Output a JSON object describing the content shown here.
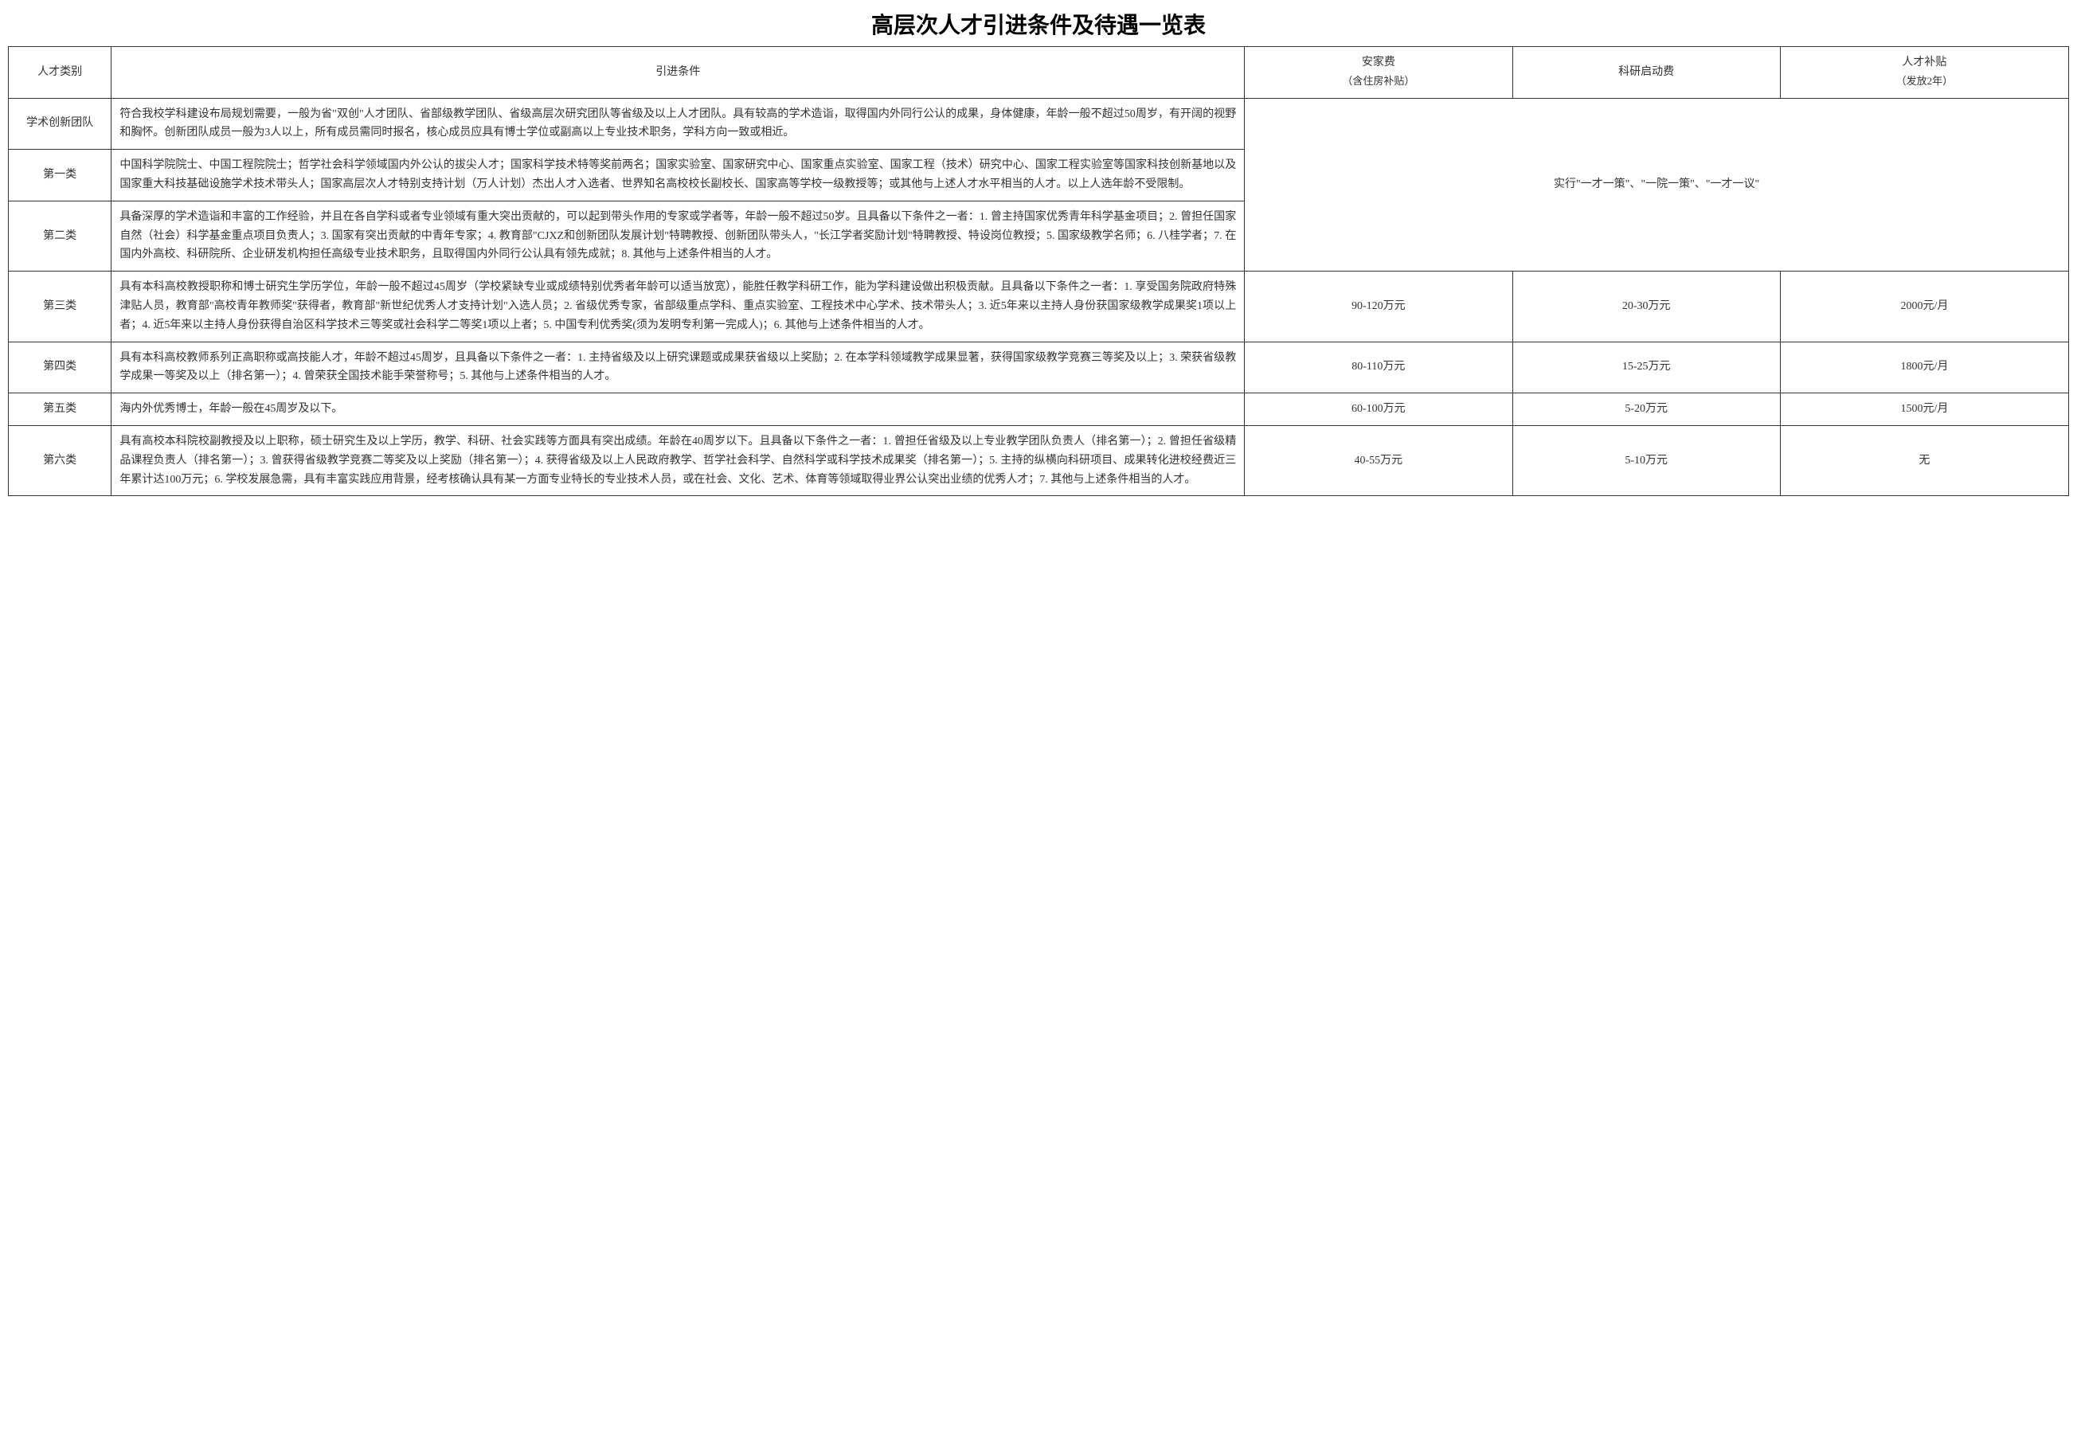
{
  "title": "高层次人才引进条件及待遇一览表",
  "headers": {
    "category": "人才类别",
    "conditions": "引进条件",
    "settle_fee": "安家费",
    "settle_fee_sub": "（含住房补贴）",
    "research_fee": "科研启动费",
    "subsidy": "人才补贴",
    "subsidy_sub": "（发放2年）"
  },
  "merged_policy": "实行\"一才一策\"、\"一院一策\"、\"一才一议\"",
  "rows": [
    {
      "category": "学术创新团队",
      "conditions": "符合我校学科建设布局规划需要，一般为省\"双创\"人才团队、省部级教学团队、省级高层次研究团队等省级及以上人才团队。具有较高的学术造诣，取得国内外同行公认的成果，身体健康，年龄一般不超过50周岁，有开阔的视野和胸怀。创新团队成员一般为3人以上，所有成员需同时报名，核心成员应具有博士学位或副高以上专业技术职务，学科方向一致或相近。"
    },
    {
      "category": "第一类",
      "conditions": "中国科学院院士、中国工程院院士；哲学社会科学领域国内外公认的拔尖人才；国家科学技术特等奖前两名；国家实验室、国家研究中心、国家重点实验室、国家工程（技术）研究中心、国家工程实验室等国家科技创新基地以及国家重大科技基础设施学术技术带头人；国家高层次人才特别支持计划（万人计划）杰出人才入选者、世界知名高校校长副校长、国家高等学校一级教授等；或其他与上述人才水平相当的人才。以上人选年龄不受限制。"
    },
    {
      "category": "第二类",
      "conditions": "具备深厚的学术造诣和丰富的工作经验，并且在各自学科或者专业领域有重大突出贡献的，可以起到带头作用的专家或学者等，年龄一般不超过50岁。且具备以下条件之一者：1. 曾主持国家优秀青年科学基金项目；2. 曾担任国家自然（社会）科学基金重点项目负责人；3. 国家有突出贡献的中青年专家；4. 教育部\"CJXZ和创新团队发展计划\"特聘教授、创新团队带头人，\"长江学者奖励计划\"特聘教授、特设岗位教授；5. 国家级教学名师；6. 八桂学者；7. 在国内外高校、科研院所、企业研发机构担任高级专业技术职务，且取得国内外同行公认具有领先成就；8. 其他与上述条件相当的人才。"
    },
    {
      "category": "第三类",
      "conditions": "具有本科高校教授职称和博士研究生学历学位，年龄一般不超过45周岁（学校紧缺专业或成绩特别优秀者年龄可以适当放宽），能胜任教学科研工作，能为学科建设做出积极贡献。且具备以下条件之一者：1. 享受国务院政府特殊津贴人员，教育部\"高校青年教师奖\"获得者，教育部\"新世纪优秀人才支持计划\"入选人员；2. 省级优秀专家，省部级重点学科、重点实验室、工程技术中心学术、技术带头人；3. 近5年来以主持人身份获国家级教学成果奖1项以上者；4. 近5年来以主持人身份获得自治区科学技术三等奖或社会科学二等奖1项以上者；5. 中国专利优秀奖(须为发明专利第一完成人)；6. 其他与上述条件相当的人才。",
      "settle_fee": "90-120万元",
      "research_fee": "20-30万元",
      "subsidy": "2000元/月"
    },
    {
      "category": "第四类",
      "conditions": "具有本科高校教师系列正高职称或高技能人才，年龄不超过45周岁，且具备以下条件之一者：1. 主持省级及以上研究课题或成果获省级以上奖励；2. 在本学科领域教学成果显著，获得国家级教学竞赛三等奖及以上；3. 荣获省级教学成果一等奖及以上（排名第一）；4. 曾荣获全国技术能手荣誉称号；5. 其他与上述条件相当的人才。",
      "settle_fee": "80-110万元",
      "research_fee": "15-25万元",
      "subsidy": "1800元/月"
    },
    {
      "category": "第五类",
      "conditions": "海内外优秀博士，年龄一般在45周岁及以下。",
      "settle_fee": "60-100万元",
      "research_fee": "5-20万元",
      "subsidy": "1500元/月"
    },
    {
      "category": "第六类",
      "conditions": "具有高校本科院校副教授及以上职称，硕士研究生及以上学历，教学、科研、社会实践等方面具有突出成绩。年龄在40周岁以下。且具备以下条件之一者：1. 曾担任省级及以上专业教学团队负责人（排名第一）；2. 曾担任省级精品课程负责人（排名第一）；3. 曾获得省级教学竞赛二等奖及以上奖励（排名第一）；4. 获得省级及以上人民政府教学、哲学社会科学、自然科学或科学技术成果奖（排名第一）；5. 主持的纵横向科研项目、成果转化进校经费近三年累计达100万元；6. 学校发展急需，具有丰富实践应用背景，经考核确认具有某一方面专业特长的专业技术人员，或在社会、文化、艺术、体育等领域取得业界公认突出业绩的优秀人才；7. 其他与上述条件相当的人才。",
      "settle_fee": "40-55万元",
      "research_fee": "5-10万元",
      "subsidy": "无"
    }
  ]
}
